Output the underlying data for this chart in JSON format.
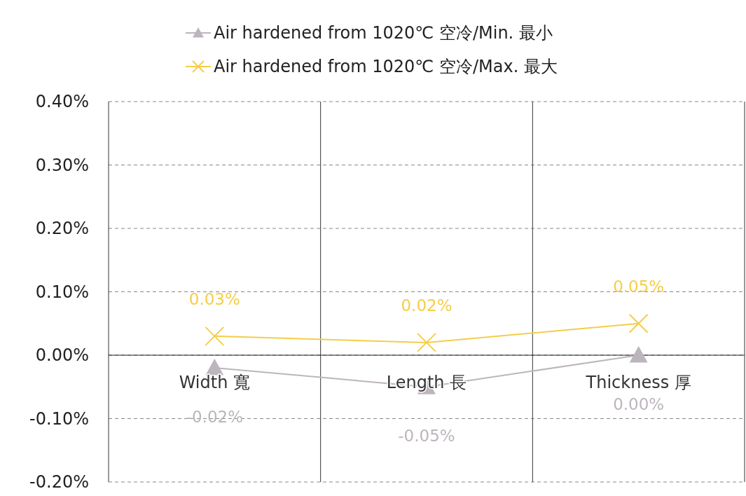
{
  "chart_data": {
    "type": "line",
    "categories": [
      "Width 寬",
      "Length 長",
      "Thickness 厚"
    ],
    "series": [
      {
        "name": "Air hardened from 1020℃ 空冷/Min. 最小",
        "color": "#bdb5bd",
        "marker": "triangle",
        "values": [
          -0.02,
          -0.05,
          0.0
        ],
        "value_labels": [
          "-0.02%",
          "-0.05%",
          "0.00%"
        ]
      },
      {
        "name": "Air hardened from 1020℃ 空冷/Max. 最大",
        "color": "#f5cd48",
        "marker": "cross",
        "values": [
          0.03,
          0.02,
          0.05
        ],
        "value_labels": [
          "0.03%",
          "0.02%",
          "0.05%"
        ]
      }
    ],
    "ylim": [
      -0.2,
      0.4
    ],
    "yticks": [
      {
        "value": 0.4,
        "label": "0.40%"
      },
      {
        "value": 0.3,
        "label": "0.30%"
      },
      {
        "value": 0.2,
        "label": "0.20%"
      },
      {
        "value": 0.1,
        "label": "0.10%"
      },
      {
        "value": 0,
        "label": "0.00%"
      },
      {
        "value": -0.1,
        "label": "-0.10%"
      },
      {
        "value": -0.2,
        "label": "-0.20%"
      }
    ],
    "grid": true,
    "legend": "top",
    "line_style": "solid"
  }
}
